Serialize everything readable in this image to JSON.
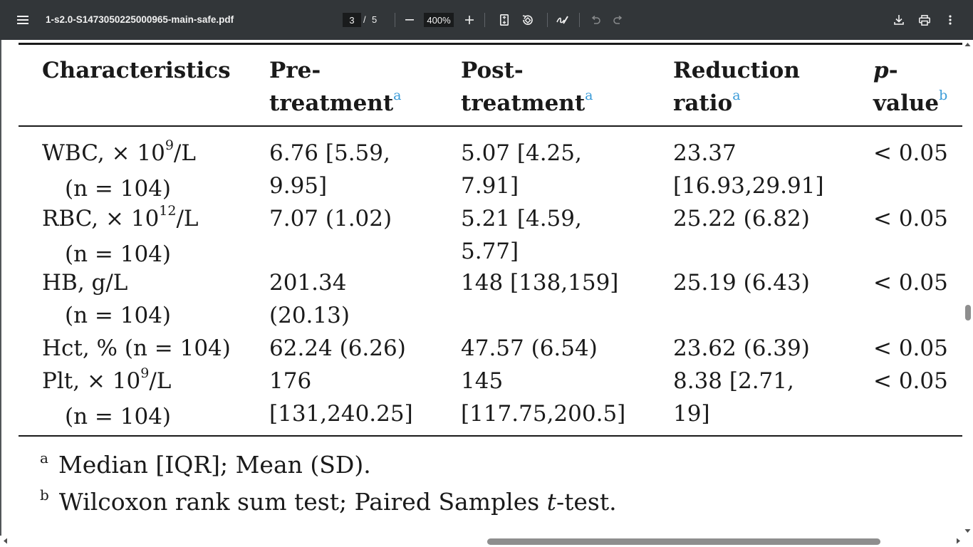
{
  "toolbar": {
    "title": "1-s2.0-S1473050225000965-main-safe.pdf",
    "page_current": "3",
    "page_separator": "/",
    "page_total": "5",
    "zoom": "400%"
  },
  "table": {
    "headers": [
      {
        "text": "Characteristics",
        "sup": ""
      },
      {
        "line1": "Pre-",
        "line2": "treatment",
        "sup": "a"
      },
      {
        "line1": "Post-",
        "line2": "treatment",
        "sup": "a"
      },
      {
        "line1": "Reduction",
        "line2": "ratio",
        "sup": "a"
      },
      {
        "line1": "p",
        "line1b": "-",
        "line2": "value",
        "sup": "b"
      }
    ],
    "rows": [
      {
        "char_pre": "WBC, × 10",
        "char_exp": "9",
        "char_post": "/L",
        "char_n": "(n = 104)",
        "pre": [
          "6.76 [5.59,",
          "9.95]"
        ],
        "post": [
          "5.07 [4.25,",
          "7.91]"
        ],
        "ratio": [
          "23.37",
          "[16.93,29.91]"
        ],
        "p": "< 0.05"
      },
      {
        "char_pre": "RBC, × 10",
        "char_exp": "12",
        "char_post": "/L",
        "char_n": "(n = 104)",
        "pre": [
          "7.07 (1.02)"
        ],
        "post": [
          "5.21 [4.59,",
          "5.77]"
        ],
        "ratio": [
          "25.22 (6.82)"
        ],
        "p": "< 0.05"
      },
      {
        "char_pre": "HB, g/L",
        "char_exp": "",
        "char_post": "",
        "char_n": "(n = 104)",
        "pre": [
          "201.34",
          "(20.13)"
        ],
        "post": [
          "148 [138,159]"
        ],
        "ratio": [
          "25.19 (6.43)"
        ],
        "p": "< 0.05"
      },
      {
        "char_pre": "Hct, % (n = 104)",
        "char_exp": "",
        "char_post": "",
        "char_n": "",
        "pre": [
          "62.24 (6.26)"
        ],
        "post": [
          "47.57 (6.54)"
        ],
        "ratio": [
          "23.62 (6.39)"
        ],
        "p": "< 0.05"
      },
      {
        "char_pre": "Plt, × 10",
        "char_exp": "9",
        "char_post": "/L",
        "char_n": "(n = 104)",
        "pre": [
          "176",
          "[131,240.25]"
        ],
        "post": [
          "145",
          "[117.75,200.5]"
        ],
        "ratio": [
          "8.38 [2.71,",
          "19]"
        ],
        "p": "< 0.05"
      }
    ]
  },
  "footnotes": [
    {
      "mark": "a",
      "text": "Median [IQR]; Mean (SD).",
      "pre": "",
      "ital": "",
      "post": ""
    },
    {
      "mark": "b",
      "text": "",
      "pre": "Wilcoxon rank sum test; Paired Samples ",
      "ital": "t",
      "post": "-test."
    }
  ],
  "icons": {
    "menu": "menu-icon",
    "minus": "zoom-out-icon",
    "plus": "zoom-in-icon",
    "fit": "fit-page-icon",
    "rotate": "rotate-icon",
    "annotate": "draw-icon",
    "undo": "undo-icon",
    "redo": "redo-icon",
    "download": "download-icon",
    "print": "print-icon",
    "more": "more-vert-icon"
  }
}
